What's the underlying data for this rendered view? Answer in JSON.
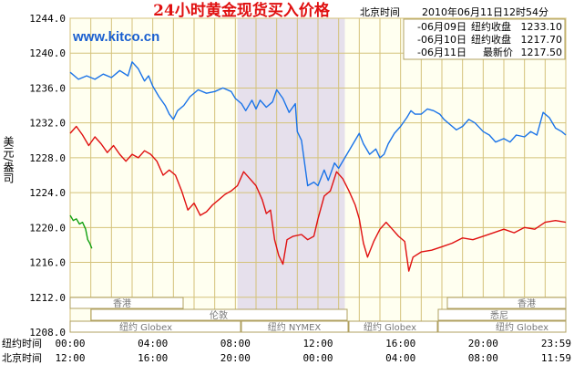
{
  "header": {
    "title": "24小时黄金现货买入价格",
    "timezone_label": "北京时间",
    "timestamp": "2010年06月11日12时54分",
    "website": "www.kitco.cn"
  },
  "legend": [
    {
      "date": "-06月09日",
      "label": "纽约收盘",
      "value": "1233.10",
      "color": "#1a73e8"
    },
    {
      "date": "-06月10日",
      "label": "纽约收盘",
      "value": "1217.70",
      "color": "#e01010"
    },
    {
      "date": "-06月11日",
      "label": "最新价",
      "value": "1217.50",
      "color": "#10a010"
    }
  ],
  "y_axis_label": "美元/盎司",
  "x_axis": {
    "ny_label": "纽约时间",
    "bj_label": "北京时间",
    "ny_ticks": [
      "00:00",
      "04:00",
      "08:00",
      "12:00",
      "16:00",
      "20:00",
      "23:59"
    ],
    "bj_ticks": [
      "12:00",
      "16:00",
      "20:00",
      "00:00",
      "04:00",
      "08:00",
      "11:59"
    ]
  },
  "sessions": {
    "row1": [
      "香港",
      "香港"
    ],
    "row2": [
      "伦敦",
      "悉尼"
    ],
    "row3": [
      "纽约 Globex",
      "纽约 NYMEX",
      "纽约 Globex",
      "纽约 Globex"
    ]
  },
  "colors": {
    "grid": "#d4c27a",
    "background": "#fffff0",
    "shade": "#e6e0ec",
    "title": "#e01010",
    "url": "#1a5fd0",
    "axis_text": "#000000"
  },
  "chart_data": {
    "type": "line",
    "x_unit": "hours since 00:00 New York time",
    "xlim": [
      0,
      24
    ],
    "ylim": [
      1208,
      1244
    ],
    "y_ticks": [
      1208,
      1212,
      1216,
      1220,
      1224,
      1228,
      1232,
      1236,
      1240,
      1244
    ],
    "shaded_range": [
      8.1,
      13.3
    ],
    "series": [
      {
        "name": "06月09日",
        "color": "#1a73e8",
        "points": [
          [
            0,
            1237.8
          ],
          [
            0.4,
            1237.0
          ],
          [
            0.8,
            1237.4
          ],
          [
            1.2,
            1237.0
          ],
          [
            1.6,
            1237.6
          ],
          [
            2.0,
            1237.2
          ],
          [
            2.4,
            1238.0
          ],
          [
            2.8,
            1237.4
          ],
          [
            3.0,
            1239.0
          ],
          [
            3.3,
            1238.2
          ],
          [
            3.6,
            1236.8
          ],
          [
            3.8,
            1237.4
          ],
          [
            4.0,
            1236.2
          ],
          [
            4.3,
            1235.0
          ],
          [
            4.6,
            1234.0
          ],
          [
            4.8,
            1233.0
          ],
          [
            5.0,
            1232.4
          ],
          [
            5.2,
            1233.4
          ],
          [
            5.5,
            1234.0
          ],
          [
            5.8,
            1235.0
          ],
          [
            6.2,
            1235.8
          ],
          [
            6.6,
            1235.4
          ],
          [
            7.0,
            1235.6
          ],
          [
            7.4,
            1236.0
          ],
          [
            7.8,
            1235.6
          ],
          [
            8.0,
            1234.8
          ],
          [
            8.3,
            1234.2
          ],
          [
            8.5,
            1233.4
          ],
          [
            8.8,
            1234.6
          ],
          [
            9.0,
            1233.6
          ],
          [
            9.2,
            1234.6
          ],
          [
            9.5,
            1233.8
          ],
          [
            9.8,
            1234.4
          ],
          [
            10.0,
            1235.8
          ],
          [
            10.3,
            1234.8
          ],
          [
            10.6,
            1233.2
          ],
          [
            10.9,
            1234.2
          ],
          [
            11.0,
            1231.0
          ],
          [
            11.2,
            1230.0
          ],
          [
            11.5,
            1224.8
          ],
          [
            11.8,
            1225.2
          ],
          [
            12.0,
            1224.8
          ],
          [
            12.3,
            1226.6
          ],
          [
            12.5,
            1225.4
          ],
          [
            12.8,
            1227.4
          ],
          [
            13.0,
            1226.8
          ],
          [
            13.3,
            1228.0
          ],
          [
            13.6,
            1229.2
          ],
          [
            14.0,
            1230.8
          ],
          [
            14.2,
            1229.6
          ],
          [
            14.5,
            1228.4
          ],
          [
            14.8,
            1229.0
          ],
          [
            15.0,
            1228.0
          ],
          [
            15.2,
            1228.4
          ],
          [
            15.4,
            1229.6
          ],
          [
            15.7,
            1230.8
          ],
          [
            16.0,
            1231.6
          ],
          [
            16.3,
            1232.6
          ],
          [
            16.5,
            1233.4
          ],
          [
            16.7,
            1233.0
          ],
          [
            17.0,
            1233.0
          ],
          [
            17.3,
            1233.6
          ],
          [
            17.6,
            1233.4
          ],
          [
            17.9,
            1233.0
          ],
          [
            18.1,
            1232.4
          ],
          [
            18.4,
            1231.8
          ],
          [
            18.7,
            1231.2
          ],
          [
            19.0,
            1231.6
          ],
          [
            19.3,
            1232.4
          ],
          [
            19.6,
            1232.0
          ],
          [
            20.0,
            1231.0
          ],
          [
            20.3,
            1230.6
          ],
          [
            20.6,
            1229.8
          ],
          [
            21.0,
            1230.2
          ],
          [
            21.3,
            1229.8
          ],
          [
            21.6,
            1230.6
          ],
          [
            22.0,
            1230.4
          ],
          [
            22.3,
            1231.0
          ],
          [
            22.6,
            1230.6
          ],
          [
            22.9,
            1233.2
          ],
          [
            23.2,
            1232.6
          ],
          [
            23.5,
            1231.4
          ],
          [
            23.8,
            1231.0
          ],
          [
            24.0,
            1230.6
          ]
        ]
      },
      {
        "name": "06月10日",
        "color": "#e01010",
        "points": [
          [
            0,
            1230.8
          ],
          [
            0.3,
            1231.6
          ],
          [
            0.6,
            1230.6
          ],
          [
            0.9,
            1229.4
          ],
          [
            1.2,
            1230.4
          ],
          [
            1.5,
            1229.6
          ],
          [
            1.8,
            1228.6
          ],
          [
            2.1,
            1229.4
          ],
          [
            2.4,
            1228.4
          ],
          [
            2.7,
            1227.6
          ],
          [
            3.0,
            1228.4
          ],
          [
            3.3,
            1228.0
          ],
          [
            3.6,
            1228.8
          ],
          [
            3.9,
            1228.4
          ],
          [
            4.2,
            1227.6
          ],
          [
            4.5,
            1226.0
          ],
          [
            4.8,
            1226.6
          ],
          [
            5.1,
            1226.0
          ],
          [
            5.4,
            1224.2
          ],
          [
            5.7,
            1222.0
          ],
          [
            6.0,
            1222.8
          ],
          [
            6.3,
            1221.4
          ],
          [
            6.6,
            1221.8
          ],
          [
            6.9,
            1222.6
          ],
          [
            7.2,
            1223.2
          ],
          [
            7.5,
            1223.8
          ],
          [
            7.8,
            1224.2
          ],
          [
            8.1,
            1224.8
          ],
          [
            8.4,
            1226.4
          ],
          [
            8.7,
            1225.6
          ],
          [
            9.0,
            1224.8
          ],
          [
            9.3,
            1223.2
          ],
          [
            9.5,
            1221.6
          ],
          [
            9.7,
            1222.0
          ],
          [
            9.9,
            1218.6
          ],
          [
            10.1,
            1216.8
          ],
          [
            10.3,
            1215.8
          ],
          [
            10.5,
            1218.6
          ],
          [
            10.8,
            1219.0
          ],
          [
            11.2,
            1219.2
          ],
          [
            11.5,
            1218.6
          ],
          [
            11.8,
            1219.0
          ],
          [
            12.0,
            1221.0
          ],
          [
            12.3,
            1223.6
          ],
          [
            12.6,
            1224.2
          ],
          [
            12.9,
            1226.4
          ],
          [
            13.2,
            1225.6
          ],
          [
            13.5,
            1224.2
          ],
          [
            13.8,
            1222.6
          ],
          [
            14.0,
            1221.0
          ],
          [
            14.2,
            1218.2
          ],
          [
            14.4,
            1216.6
          ],
          [
            14.7,
            1218.4
          ],
          [
            15.0,
            1219.8
          ],
          [
            15.3,
            1220.6
          ],
          [
            15.6,
            1219.8
          ],
          [
            15.9,
            1219.0
          ],
          [
            16.2,
            1218.4
          ],
          [
            16.4,
            1215.0
          ],
          [
            16.6,
            1216.6
          ],
          [
            17.0,
            1217.2
          ],
          [
            17.5,
            1217.4
          ],
          [
            18.0,
            1217.8
          ],
          [
            18.5,
            1218.2
          ],
          [
            19.0,
            1218.8
          ],
          [
            19.5,
            1218.6
          ],
          [
            20.0,
            1219.0
          ],
          [
            20.5,
            1219.4
          ],
          [
            21.0,
            1219.8
          ],
          [
            21.5,
            1219.4
          ],
          [
            22.0,
            1220.0
          ],
          [
            22.5,
            1219.8
          ],
          [
            23.0,
            1220.6
          ],
          [
            23.5,
            1220.8
          ],
          [
            24.0,
            1220.6
          ]
        ]
      },
      {
        "name": "06月11日",
        "color": "#10a010",
        "points": [
          [
            0,
            1221.4
          ],
          [
            0.15,
            1220.8
          ],
          [
            0.3,
            1221.0
          ],
          [
            0.45,
            1220.4
          ],
          [
            0.6,
            1220.6
          ],
          [
            0.75,
            1219.8
          ],
          [
            0.85,
            1218.6
          ],
          [
            0.95,
            1218.2
          ],
          [
            1.05,
            1217.6
          ]
        ]
      }
    ]
  }
}
